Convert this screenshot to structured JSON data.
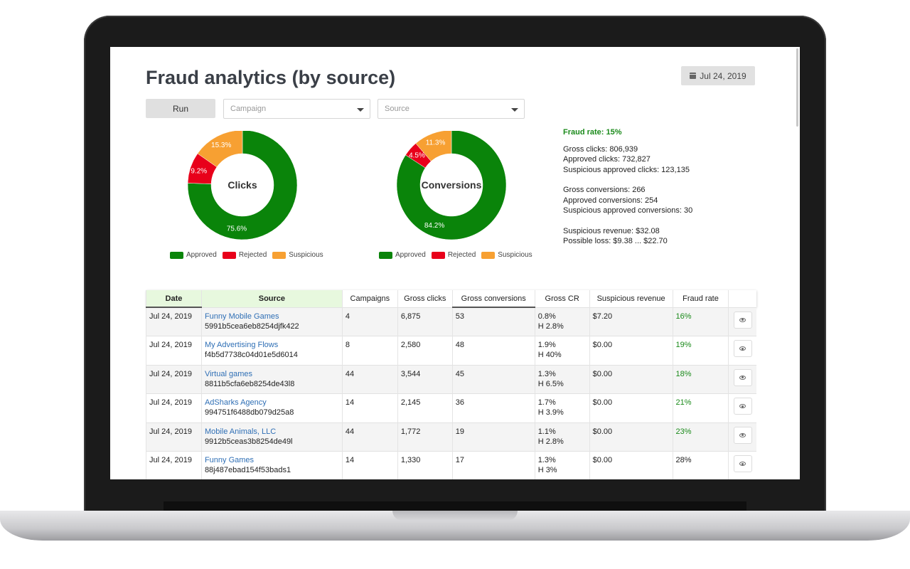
{
  "page": {
    "title": "Fraud analytics (by source)",
    "date_badge": "Jul 24, 2019",
    "run_label": "Run",
    "campaign_placeholder": "Campaign",
    "source_placeholder": "Source"
  },
  "colors": {
    "approved": "#0a840a",
    "rejected": "#e8001a",
    "suspicious": "#f7a032"
  },
  "chart_data": [
    {
      "type": "pie",
      "title": "Clicks",
      "categories": [
        "Approved",
        "Rejected",
        "Suspicious"
      ],
      "values": [
        75.6,
        9.2,
        15.3
      ],
      "labels": [
        "75.6%",
        "9.2%",
        "15.3%"
      ]
    },
    {
      "type": "pie",
      "title": "Conversions",
      "categories": [
        "Approved",
        "Rejected",
        "Suspicious"
      ],
      "values": [
        84.2,
        4.5,
        11.3
      ],
      "labels": [
        "84.2%",
        "4.5%",
        "11.3%"
      ]
    }
  ],
  "legend": {
    "approved": "Approved",
    "rejected": "Rejected",
    "suspicious": "Suspicious"
  },
  "stats": {
    "fraud_rate": "Fraud rate: 15%",
    "gross_clicks": "Gross clicks: 806,939",
    "approved_clicks": "Approved clicks: 732,827",
    "suspicious_approved_clicks": "Suspicious approved clicks: 123,135",
    "gross_conversions": "Gross conversions: 266",
    "approved_conversions": "Approved conversions: 254",
    "suspicious_approved_conversions": "Suspicious approved conversions: 30",
    "suspicious_revenue": "Suspicious revenue: $32.08",
    "possible_loss": "Possible loss: $9.38 ... $22.70"
  },
  "table": {
    "headers": [
      "Date",
      "Source",
      "Campaigns",
      "Gross clicks",
      "Gross conversions",
      "Gross CR",
      "Suspicious revenue",
      "Fraud rate"
    ],
    "rows": [
      {
        "date": "Jul 24, 2019",
        "source_name": "Funny Mobile Games",
        "source_id": "5991b5cea6eb8254djfk422",
        "campaigns": "4",
        "gross_clicks": "6,875",
        "gross_conversions": "53",
        "cr": "0.8%",
        "cr_h": "H 2.8%",
        "revenue": "$7.20",
        "fraud_rate": "16%",
        "fraud_green": true
      },
      {
        "date": "Jul 24, 2019",
        "source_name": "My Advertising Flows",
        "source_id": "f4b5d7738c04d01e5d6014",
        "campaigns": "8",
        "gross_clicks": "2,580",
        "gross_conversions": "48",
        "cr": "1.9%",
        "cr_h": "H 40%",
        "revenue": "$0.00",
        "fraud_rate": "19%",
        "fraud_green": true
      },
      {
        "date": "Jul 24, 2019",
        "source_name": "Virtual games",
        "source_id": "8811b5cfa6eb8254de43l8",
        "campaigns": "44",
        "gross_clicks": "3,544",
        "gross_conversions": "45",
        "cr": "1.3%",
        "cr_h": "H 6.5%",
        "revenue": "$0.00",
        "fraud_rate": "18%",
        "fraud_green": true
      },
      {
        "date": "Jul 24, 2019",
        "source_name": "AdSharks Agency",
        "source_id": "994751f6488db079d25a8",
        "campaigns": "14",
        "gross_clicks": "2,145",
        "gross_conversions": "36",
        "cr": "1.7%",
        "cr_h": "H 3.9%",
        "revenue": "$0.00",
        "fraud_rate": "21%",
        "fraud_green": true
      },
      {
        "date": "Jul 24, 2019",
        "source_name": "Mobile Animals, LLC",
        "source_id": "9912b5ceas3b8254de49l",
        "campaigns": "44",
        "gross_clicks": "1,772",
        "gross_conversions": "19",
        "cr": "1.1%",
        "cr_h": "H 2.8%",
        "revenue": "$0.00",
        "fraud_rate": "23%",
        "fraud_green": true
      },
      {
        "date": "Jul 24, 2019",
        "source_name": "Funny Games",
        "source_id": "88j487ebad154f53bads1",
        "campaigns": "14",
        "gross_clicks": "1,330",
        "gross_conversions": "17",
        "cr": "1.3%",
        "cr_h": "H 3%",
        "revenue": "$0.00",
        "fraud_rate": "28%",
        "fraud_green": false
      }
    ]
  }
}
